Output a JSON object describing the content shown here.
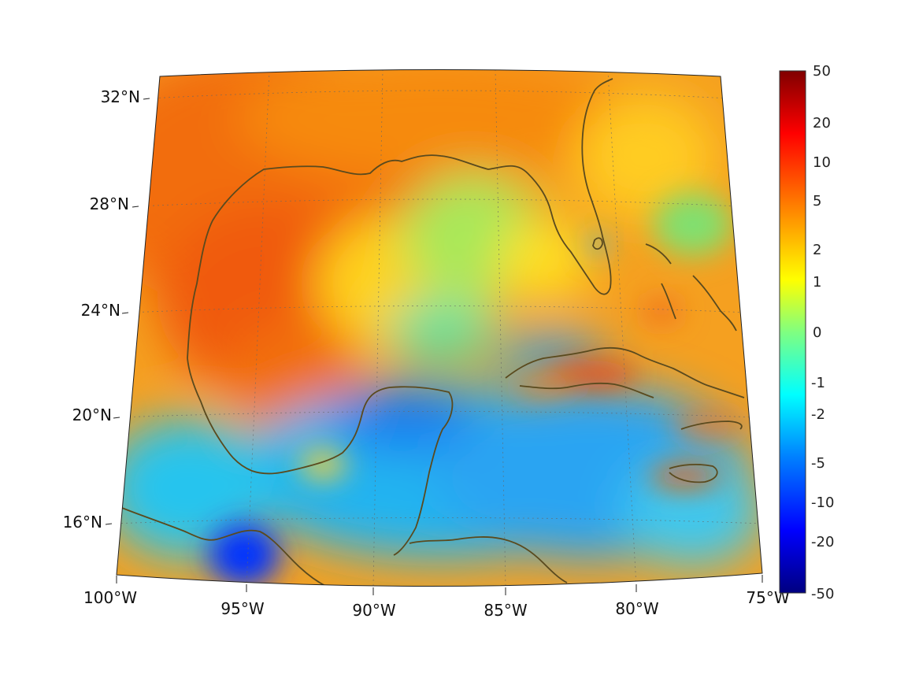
{
  "map": {
    "lat_labels": [
      "32°N",
      "28°N",
      "24°N",
      "20°N",
      "16°N"
    ],
    "lon_labels": [
      "100°W",
      "95°W",
      "90°W",
      "85°W",
      "80°W",
      "75°W"
    ],
    "coastline_color": "#5a4a1e",
    "field_colors": {
      "land_north": "#f26d0a",
      "gulf_warm": "#f46a0f",
      "gulf_center": "#ffd21e",
      "caribbean": "#24b4f0",
      "deep_blue": "#0033ff"
    }
  },
  "colorbar": {
    "tick_labels": [
      "50",
      "20",
      "10",
      "5",
      "2",
      "1",
      "0",
      "-1",
      "-2",
      "-5",
      "-10",
      "-20",
      "-50"
    ],
    "gradient": [
      "#800000",
      "#ff0000",
      "#ff8000",
      "#ffff00",
      "#80ff80",
      "#00ffff",
      "#0080ff",
      "#0000ff",
      "#000080"
    ]
  }
}
